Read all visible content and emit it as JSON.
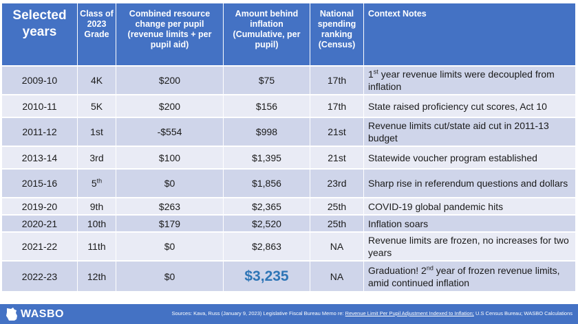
{
  "headers": [
    "Selected years",
    "Class of 2023 Grade",
    "Combined resource change per pupil (revenue limits + per pupil aid)",
    "Amount behind inflation (Cumulative, per pupil)",
    "National spending ranking (Census)",
    "Context Notes"
  ],
  "rows": [
    {
      "year": "2009-10",
      "grade": "4K",
      "grade_sup": "",
      "change": "$200",
      "behind": "$75",
      "rank": "17th",
      "note_pre": "1",
      "note_sup": "st",
      "note": " year revenue limits were decoupled from inflation"
    },
    {
      "year": "2010-11",
      "grade": "5K",
      "grade_sup": "",
      "change": "$200",
      "behind": "$156",
      "rank": "17th",
      "note_pre": "",
      "note_sup": "",
      "note": "State raised proficiency cut scores, Act 10"
    },
    {
      "year": "2011-12",
      "grade": "1st",
      "grade_sup": "",
      "change": "-$554",
      "behind": "$998",
      "rank": "21st",
      "note_pre": "",
      "note_sup": "",
      "note": "Revenue limits cut/state aid cut in 2011-13 budget"
    },
    {
      "year": "2013-14",
      "grade": "3rd",
      "grade_sup": "",
      "change": "$100",
      "behind": "$1,395",
      "rank": "21st",
      "note_pre": "",
      "note_sup": "",
      "note": "Statewide voucher program established"
    },
    {
      "year": "2015-16",
      "grade": "5",
      "grade_sup": "th",
      "change": "$0",
      "behind": "$1,856",
      "rank": "23rd",
      "note_pre": "",
      "note_sup": "",
      "note": "Sharp rise in referendum questions and dollars"
    },
    {
      "year": "2019-20",
      "grade": "9th",
      "grade_sup": "",
      "change": "$263",
      "behind": "$2,365",
      "rank": "25th",
      "note_pre": "",
      "note_sup": "",
      "note": "COVID-19 global pandemic hits"
    },
    {
      "year": "2020-21",
      "grade": "10th",
      "grade_sup": "",
      "change": "$179",
      "behind": "$2,520",
      "rank": "25th",
      "note_pre": "",
      "note_sup": "",
      "note": "Inflation soars"
    },
    {
      "year": "2021-22",
      "grade": "11th",
      "grade_sup": "",
      "change": "$0",
      "behind": "$2,863",
      "rank": "NA",
      "note_pre": "",
      "note_sup": "",
      "note": "Revenue limits are frozen, no increases for two years"
    },
    {
      "year": "2022-23",
      "grade": "12th",
      "grade_sup": "",
      "change": "$0",
      "behind": "$3,235",
      "rank": "NA",
      "note_pre": "Graduation! 2",
      "note_sup": "nd",
      "note": " year of frozen revenue limits, amid continued inflation"
    }
  ],
  "footer": {
    "logo": "WASBO",
    "sources_pre": "Sources: Kava, Russ (January 9, 2023) Legislative Fiscal Bureau Memo re: ",
    "sources_link": "Revenue Limit Per Pupil Adjustment Indexed to Inflation;",
    "sources_post": " U.S Census Bureau; WASBO Calculations"
  },
  "colors": {
    "header": "#4472c4",
    "row_odd": "#cfd5ea",
    "row_even": "#e9ebf5",
    "highlight": "#2e75b6"
  }
}
